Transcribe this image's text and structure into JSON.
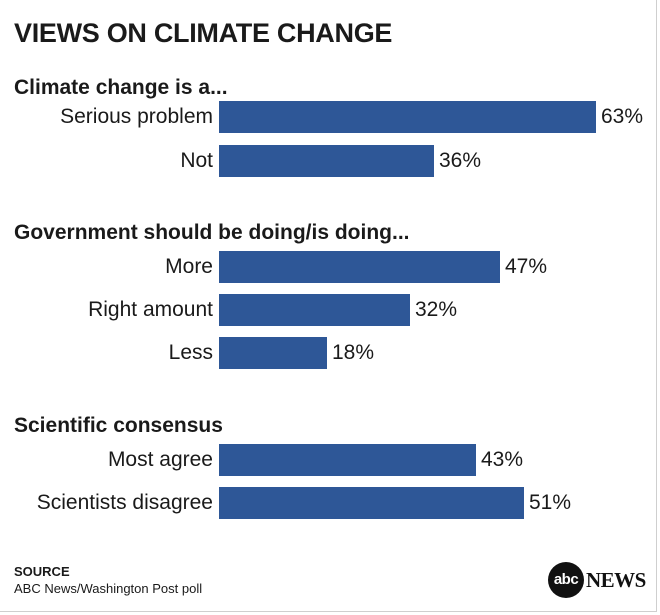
{
  "title": "VIEWS ON CLIMATE CHANGE",
  "chart_data": {
    "type": "bar",
    "orientation": "horizontal",
    "unit": "%",
    "bar_color": "#2e5797",
    "groups": [
      {
        "heading": "Climate change is a...",
        "categories": [
          "Serious problem",
          "Not"
        ],
        "values": [
          63,
          36
        ],
        "labels": [
          "63%",
          "36%"
        ]
      },
      {
        "heading": "Government should be doing/is doing...",
        "categories": [
          "More",
          "Right amount",
          "Less"
        ],
        "values": [
          47,
          32,
          18
        ],
        "labels": [
          "47%",
          "32%",
          "18%"
        ]
      },
      {
        "heading": "Scientific consensus",
        "categories": [
          "Most agree",
          "Scientists disagree"
        ],
        "values": [
          43,
          51
        ],
        "labels": [
          "43%",
          "51%"
        ]
      }
    ]
  },
  "source": {
    "heading": "SOURCE",
    "text": "ABC News/Washington Post poll"
  },
  "logo": {
    "mark": "abc",
    "word": "NEWS"
  }
}
